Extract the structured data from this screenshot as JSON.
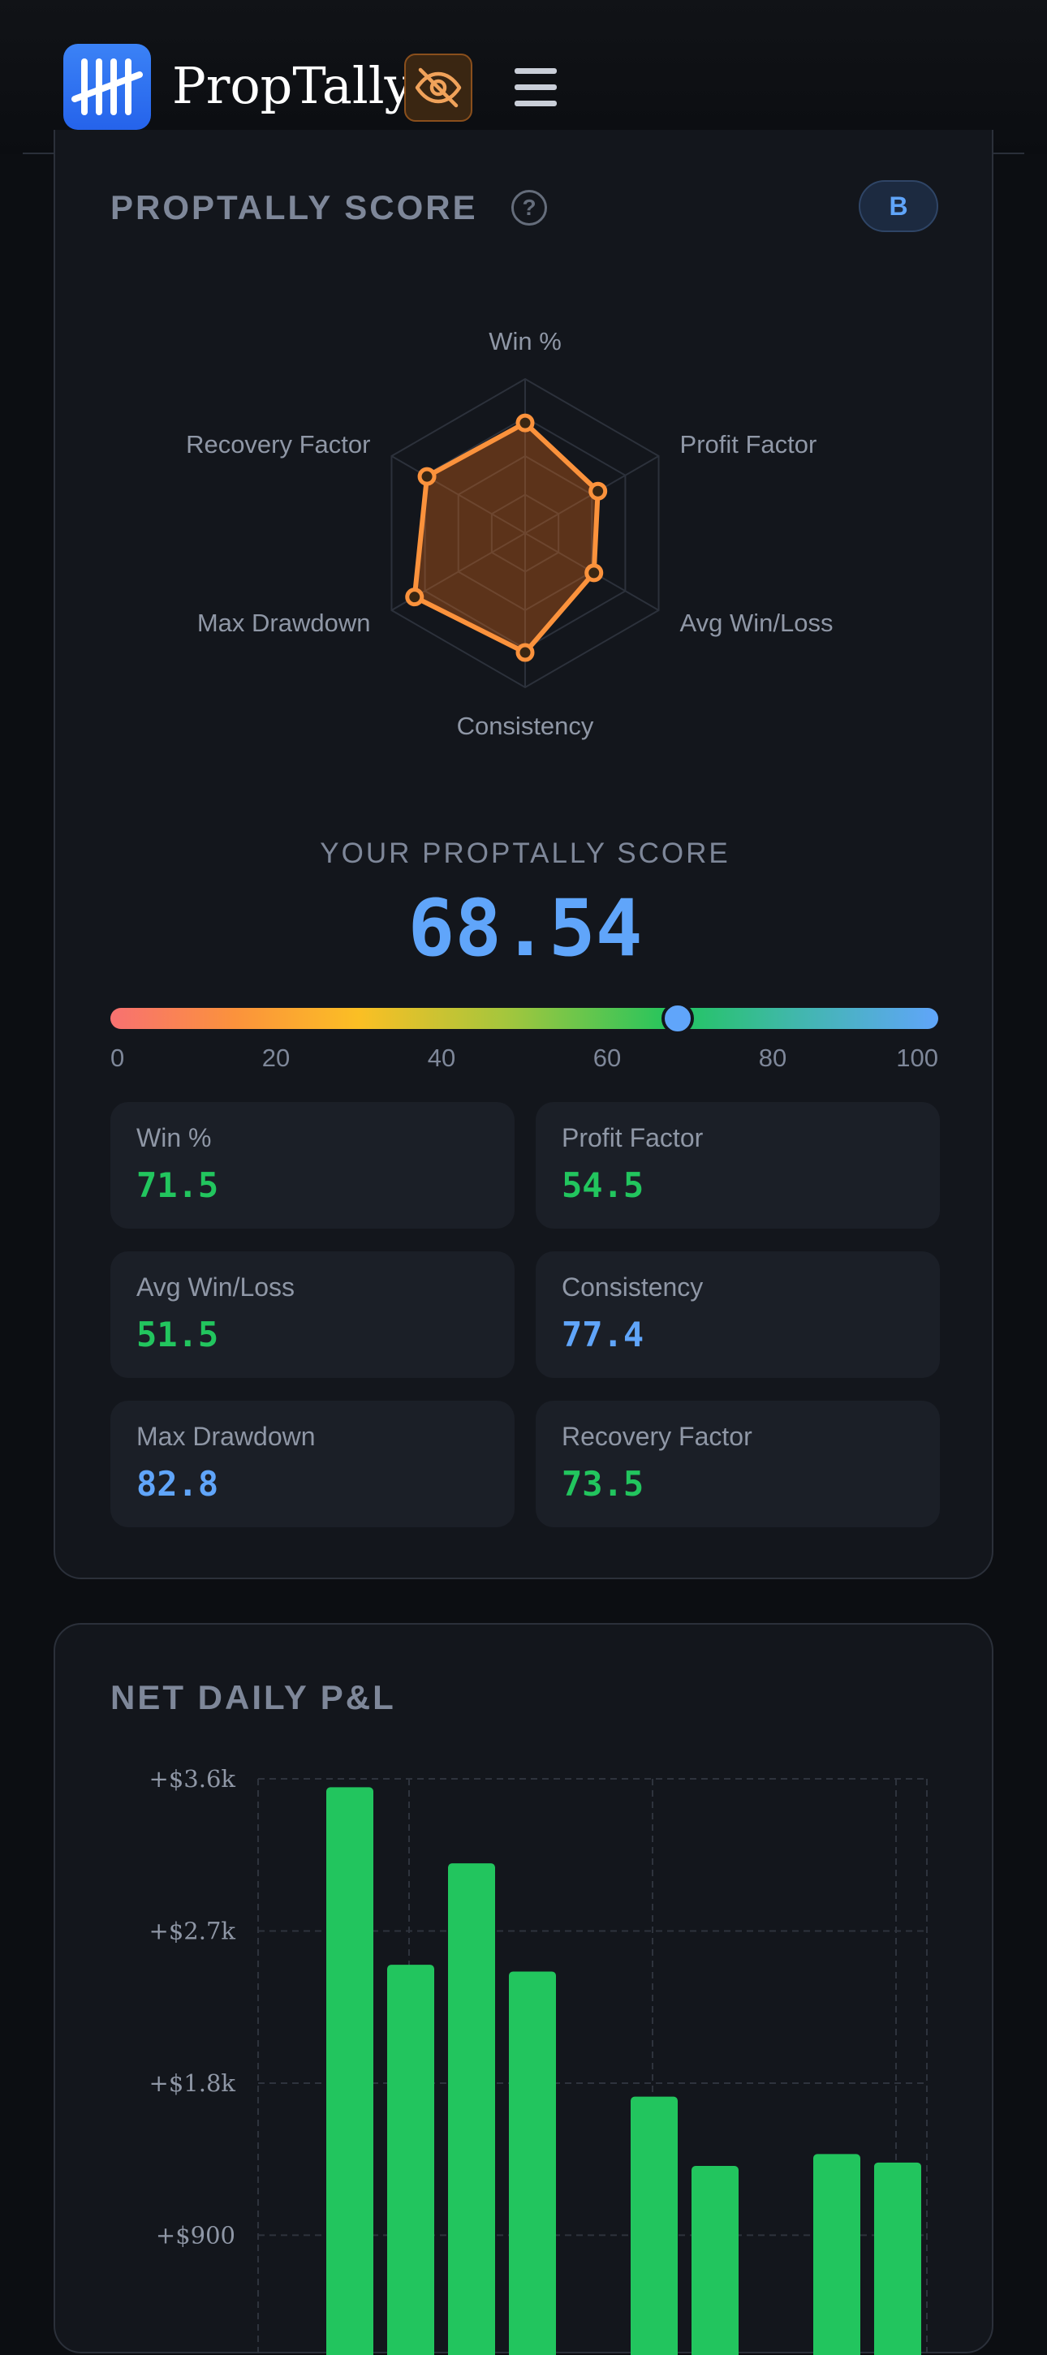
{
  "header": {
    "brand": "PropTally",
    "logo_icon": "tally-marks-icon",
    "privacy_icon": "eye-off-icon",
    "menu_icon": "hamburger-menu-icon",
    "colors": {
      "logo": "#2563eb",
      "privacy_accent": "#f97316"
    }
  },
  "score_card": {
    "title": "PROPTALLY SCORE",
    "help": "?",
    "grade": "B",
    "your_label": "YOUR PROPTALLY SCORE",
    "score": "68.54",
    "score_numeric": 68.54,
    "scale_labels": [
      "0",
      "20",
      "40",
      "60",
      "80",
      "100"
    ],
    "radar_axes": [
      "Win %",
      "Profit Factor",
      "Avg Win/Loss",
      "Consistency",
      "Max Drawdown",
      "Recovery Factor"
    ],
    "radar_values": [
      71.5,
      54.5,
      51.5,
      77.4,
      82.8,
      73.5
    ],
    "metrics": [
      {
        "label": "Win %",
        "value": "71.5",
        "color": "green"
      },
      {
        "label": "Profit Factor",
        "value": "54.5",
        "color": "green"
      },
      {
        "label": "Avg Win/Loss",
        "value": "51.5",
        "color": "green"
      },
      {
        "label": "Consistency",
        "value": "77.4",
        "color": "blue"
      },
      {
        "label": "Max Drawdown",
        "value": "82.8",
        "color": "blue"
      },
      {
        "label": "Recovery Factor",
        "value": "73.5",
        "color": "green"
      }
    ]
  },
  "pnl_card": {
    "title": "NET DAILY P&L"
  },
  "chart_data": {
    "type": "bar",
    "title": "NET DAILY P&L",
    "y_tick_labels": [
      "+$3.6k",
      "+$2.7k",
      "+$1.8k",
      "+$900"
    ],
    "y_ticks": [
      3600,
      2700,
      1800,
      900
    ],
    "ylim": [
      0,
      3600
    ],
    "bar_color": "#22c55e",
    "grid": true,
    "values": [
      3550,
      2500,
      3100,
      2460,
      0,
      1720,
      1310,
      0,
      1380,
      1330
    ]
  }
}
